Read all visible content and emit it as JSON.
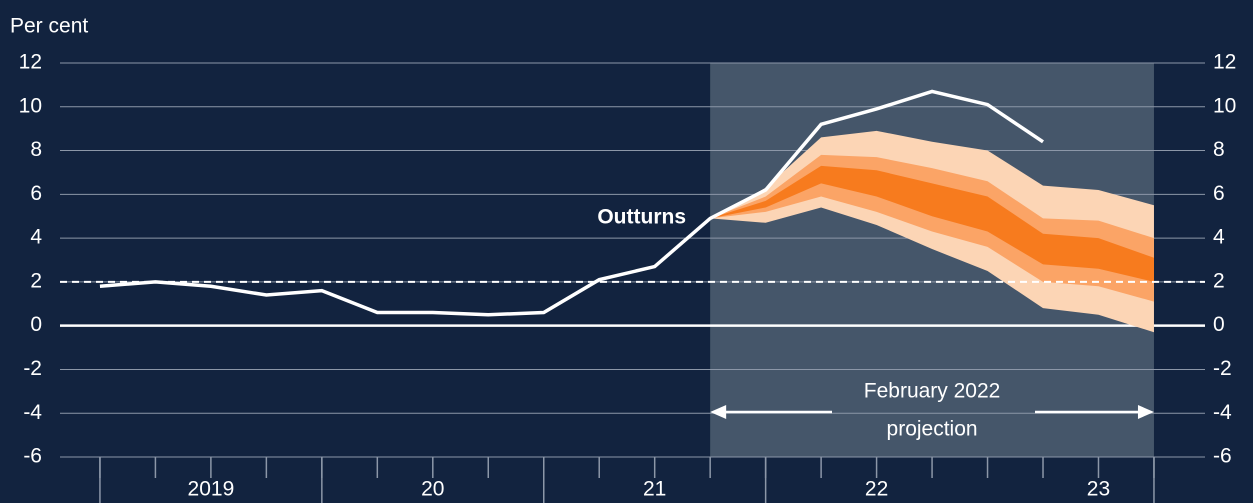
{
  "chart_data": {
    "type": "fan",
    "ylabel": "Per cent",
    "ylim": [
      -6,
      12
    ],
    "yticks": [
      -6,
      -4,
      -2,
      0,
      2,
      4,
      6,
      8,
      10,
      12
    ],
    "xlim": [
      2018.82,
      2023.98
    ],
    "xticks": [
      {
        "value": 2019.5,
        "label": "2019"
      },
      {
        "value": 2020.5,
        "label": "20"
      },
      {
        "value": 2021.5,
        "label": "21"
      },
      {
        "value": 2022.5,
        "label": "22"
      },
      {
        "value": 2023.5,
        "label": "23"
      }
    ],
    "xminorticks": [
      2019,
      2019.25,
      2019.5,
      2019.75,
      2020,
      2020.25,
      2020.5,
      2020.75,
      2021,
      2021.25,
      2021.5,
      2021.75,
      2022,
      2022.25,
      2022.5,
      2022.75,
      2023,
      2023.25,
      2023.5,
      2023.75
    ],
    "xmajorticks": [
      2019,
      2020,
      2021,
      2022,
      2023.75
    ],
    "grid": true,
    "target": 2,
    "projection": {
      "start": 2021.75,
      "end": 2023.75,
      "color": "#45566a",
      "label": [
        "February 2022",
        "projection"
      ]
    },
    "fan_x": [
      2021.75,
      2022,
      2022.25,
      2022.5,
      2022.75,
      2023,
      2023.25,
      2023.5,
      2023.75
    ],
    "fan": [
      {
        "color": "#fcd5b5",
        "lower": [
          4.9,
          4.7,
          5.4,
          4.6,
          3.5,
          2.5,
          0.8,
          0.5,
          -0.3
        ],
        "upper": [
          4.9,
          6.3,
          8.6,
          8.9,
          8.4,
          8.0,
          6.4,
          6.2,
          5.5
        ]
      },
      {
        "color": "#fba466",
        "lower": [
          4.9,
          5.2,
          5.9,
          5.2,
          4.3,
          3.6,
          2.0,
          1.8,
          1.1
        ],
        "upper": [
          4.9,
          5.9,
          7.8,
          7.7,
          7.2,
          6.6,
          4.9,
          4.8,
          4.0
        ]
      },
      {
        "color": "#f77b1e",
        "lower": [
          4.9,
          5.4,
          6.5,
          5.9,
          5.0,
          4.3,
          2.8,
          2.6,
          2.0
        ],
        "upper": [
          4.9,
          5.7,
          7.3,
          7.1,
          6.5,
          5.9,
          4.2,
          4.0,
          3.1
        ]
      }
    ],
    "series": [
      {
        "name": "Outturns",
        "color": "#ffffff",
        "x": [
          2019,
          2019.25,
          2019.5,
          2019.75,
          2020,
          2020.25,
          2020.5,
          2020.75,
          2021,
          2021.25,
          2021.5,
          2021.75,
          2022,
          2022.25,
          2022.5,
          2022.75,
          2023,
          2023.25
        ],
        "values": [
          1.8,
          2.0,
          1.8,
          1.4,
          1.6,
          0.6,
          0.6,
          0.5,
          0.6,
          2.1,
          2.7,
          4.9,
          6.2,
          9.2,
          9.9,
          10.7,
          10.1,
          8.4
        ]
      }
    ]
  }
}
